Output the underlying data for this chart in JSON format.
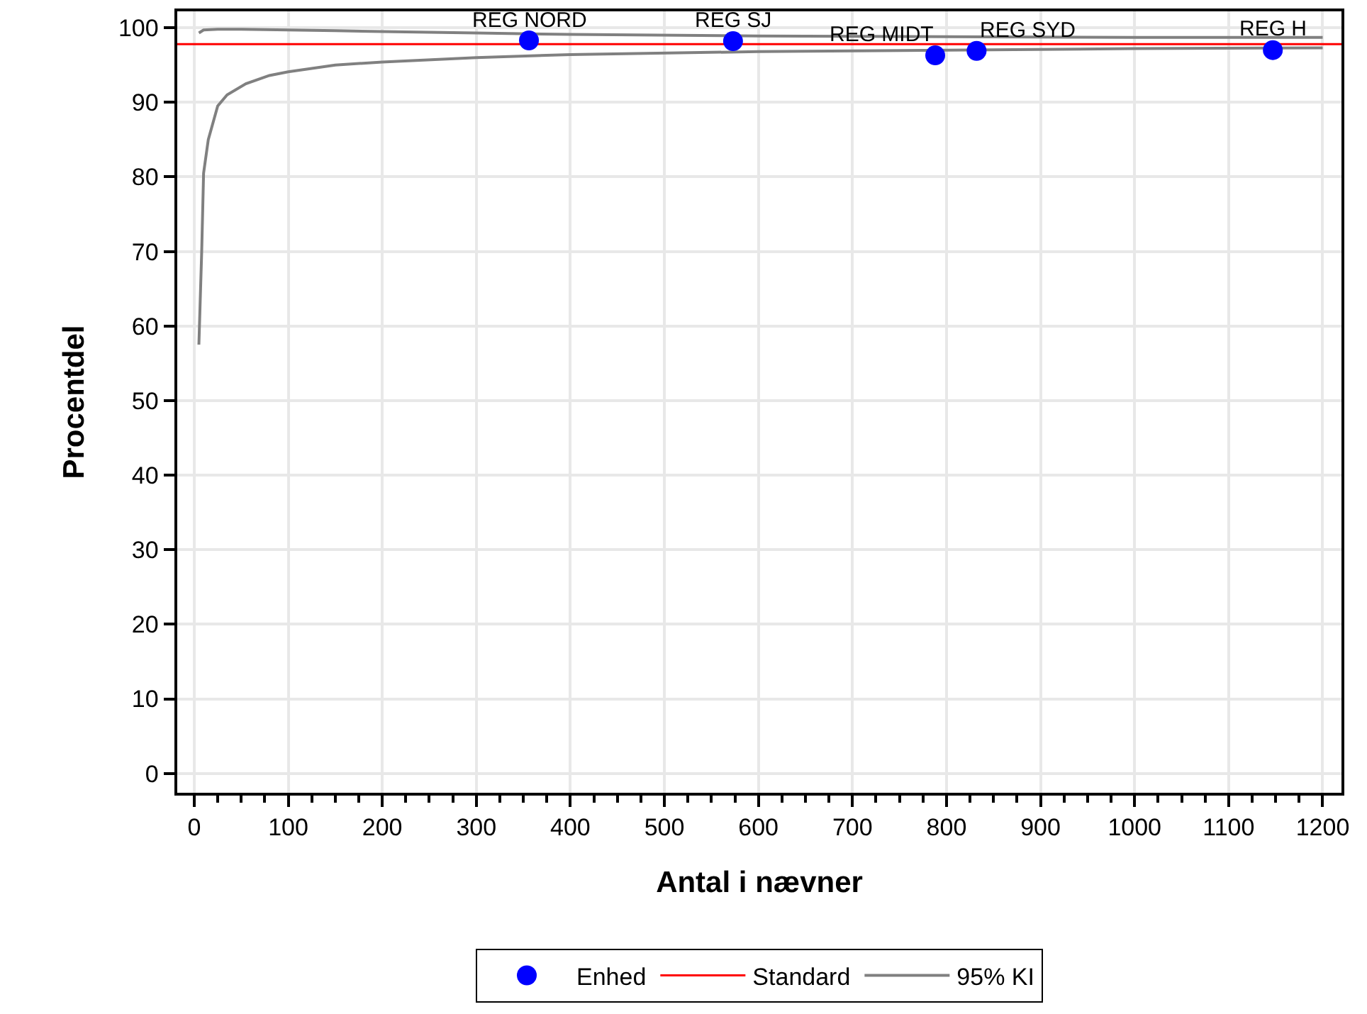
{
  "chart_data": {
    "type": "scatter",
    "xlabel": "Antal i nævner",
    "ylabel": "Procentdel",
    "xlim": [
      -18,
      1220
    ],
    "xticks": [
      0,
      100,
      200,
      300,
      400,
      500,
      600,
      700,
      800,
      900,
      1000,
      1100,
      1200
    ],
    "ylim": [
      -2.6,
      102.2
    ],
    "yticks": [
      0,
      10,
      20,
      30,
      40,
      50,
      60,
      70,
      80,
      90,
      100
    ],
    "grid": true,
    "legend": "bottom",
    "series": [
      {
        "name": "Enhed",
        "marker": "circle",
        "color": "#0000ff",
        "x": [
          356,
          573,
          788,
          832,
          1147
        ],
        "values": [
          98.3,
          98.2,
          96.3,
          96.9,
          97.0
        ]
      },
      {
        "name": "95% KI",
        "type": "line",
        "color": "#808080",
        "x": [
          5,
          10,
          25,
          50,
          100,
          150,
          200,
          300,
          400,
          600,
          800,
          1000,
          1200
        ],
        "values": [
          99.3,
          99.7,
          99.8,
          99.8,
          99.7,
          99.6,
          99.5,
          99.3,
          99.1,
          98.9,
          98.8,
          98.7,
          98.7
        ]
      },
      {
        "type": "line",
        "color": "#808080",
        "x": [
          5,
          8,
          10,
          15,
          25,
          35,
          55,
          80,
          100,
          150,
          200,
          300,
          400,
          600,
          800,
          1000,
          1200
        ],
        "values": [
          57.5,
          70,
          80.5,
          85,
          89.5,
          91,
          92.5,
          93.6,
          94.1,
          95,
          95.4,
          96,
          96.4,
          96.8,
          97.0,
          97.2,
          97.3
        ]
      }
    ],
    "ref_lines": [
      {
        "axis": "y",
        "value": 97.8,
        "label": "Standard",
        "color": "#ff0000"
      }
    ],
    "annotations": [
      {
        "text": "REG NORD",
        "x": 356,
        "y": 98.3
      },
      {
        "text": "REG SJ",
        "x": 573,
        "y": 98.2
      },
      {
        "text": "REG MIDT",
        "x": 788,
        "y": 96.3
      },
      {
        "text": "REG SYD",
        "x": 832,
        "y": 96.9
      },
      {
        "text": "REG H",
        "x": 1147,
        "y": 97.0
      }
    ]
  }
}
